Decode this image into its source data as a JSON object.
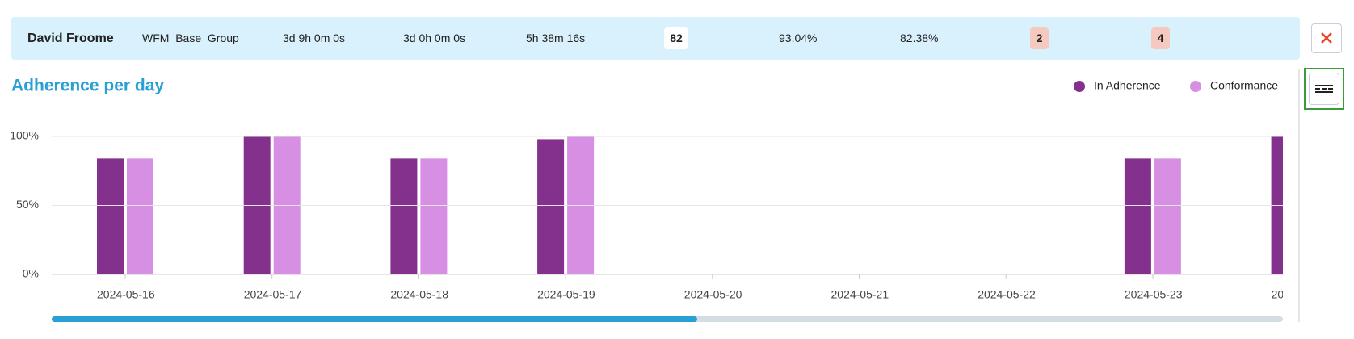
{
  "header": {
    "name": "David Froome",
    "cells": [
      "WFM_Base_Group",
      "3d 9h 0m 0s",
      "3d 0h 0m 0s",
      "5h 38m 16s",
      "82",
      "93.04%",
      "82.38%",
      "2",
      "4"
    ]
  },
  "chart_data": {
    "type": "bar",
    "title": "Adherence per day",
    "categories": [
      "2024-05-16",
      "2024-05-17",
      "2024-05-18",
      "2024-05-19",
      "2024-05-20",
      "2024-05-21",
      "2024-05-22",
      "2024-05-23",
      "20"
    ],
    "series": [
      {
        "name": "In Adherence",
        "color": "#83318c",
        "values": [
          84,
          100,
          84,
          98,
          null,
          null,
          null,
          84,
          100
        ]
      },
      {
        "name": "Conformance",
        "color": "#d68fe3",
        "values": [
          84,
          100,
          84,
          100,
          null,
          null,
          null,
          84,
          null
        ]
      }
    ],
    "ylim": [
      0,
      100
    ],
    "yticks": [
      {
        "value": 0,
        "label": "0%"
      },
      {
        "value": 50,
        "label": "50%"
      },
      {
        "value": 100,
        "label": "100%"
      }
    ],
    "grid": true,
    "legend": "top-right"
  }
}
